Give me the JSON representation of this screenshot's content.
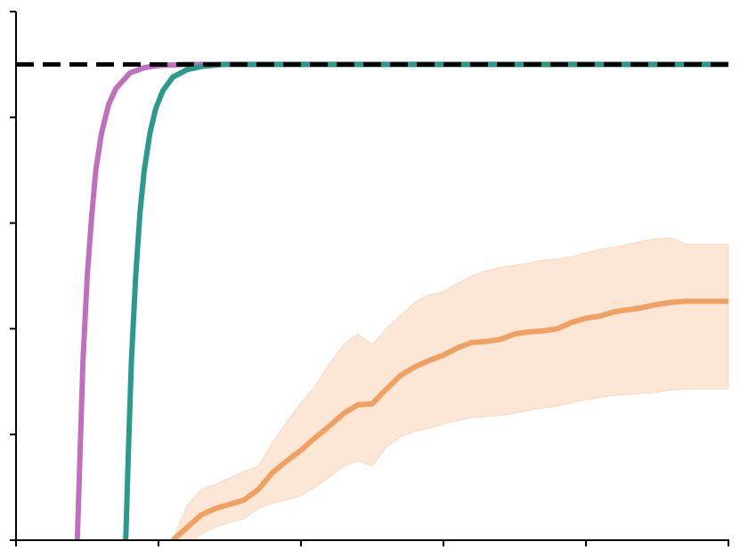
{
  "chart_data": {
    "type": "line",
    "title": "",
    "xlabel": "",
    "ylabel": "",
    "xlim": [
      0,
      5
    ],
    "ylim": [
      0,
      5
    ],
    "x_ticks": [
      0,
      1,
      2,
      3,
      4,
      5
    ],
    "y_ticks": [
      0,
      1,
      2,
      3,
      4,
      5
    ],
    "grid": false,
    "reference_line": {
      "y": 4.5,
      "style": "dashed",
      "color": "#000000"
    },
    "series": [
      {
        "color": "#c06fbe",
        "x": [
          0.43,
          0.45,
          0.47,
          0.5,
          0.53,
          0.56,
          0.6,
          0.65,
          0.7,
          0.8,
          0.9,
          1.0,
          1.2,
          1.5,
          2.0,
          3.0,
          4.0,
          5.0
        ],
        "y": [
          0.0,
          0.85,
          1.7,
          2.5,
          3.05,
          3.5,
          3.85,
          4.12,
          4.27,
          4.42,
          4.47,
          4.49,
          4.5,
          4.5,
          4.5,
          4.5,
          4.5,
          4.5
        ]
      },
      {
        "color": "#2a9a8c",
        "x": [
          0.77,
          0.79,
          0.81,
          0.84,
          0.87,
          0.9,
          0.94,
          0.98,
          1.03,
          1.1,
          1.2,
          1.3,
          1.45,
          1.6,
          2.0,
          3.0,
          4.0,
          5.0
        ],
        "y": [
          0.0,
          0.9,
          1.7,
          2.5,
          3.1,
          3.5,
          3.85,
          4.08,
          4.25,
          4.38,
          4.45,
          4.48,
          4.5,
          4.5,
          4.5,
          4.5,
          4.5,
          4.5
        ]
      },
      {
        "color": "#f2a061",
        "x": [
          1.1,
          1.2,
          1.3,
          1.4,
          1.5,
          1.6,
          1.7,
          1.8,
          1.9,
          2.0,
          2.1,
          2.2,
          2.3,
          2.4,
          2.5,
          2.6,
          2.7,
          2.8,
          2.9,
          3.0,
          3.1,
          3.2,
          3.3,
          3.4,
          3.5,
          3.6,
          3.7,
          3.8,
          3.9,
          4.0,
          4.1,
          4.2,
          4.3,
          4.4,
          4.5,
          4.6,
          4.7,
          4.8,
          4.9,
          5.0
        ],
        "y": [
          0.0,
          0.12,
          0.24,
          0.3,
          0.34,
          0.38,
          0.48,
          0.64,
          0.75,
          0.85,
          0.97,
          1.08,
          1.2,
          1.28,
          1.29,
          1.43,
          1.56,
          1.64,
          1.7,
          1.75,
          1.82,
          1.87,
          1.88,
          1.9,
          1.95,
          1.97,
          1.98,
          2.0,
          2.06,
          2.1,
          2.12,
          2.16,
          2.18,
          2.2,
          2.23,
          2.25,
          2.26,
          2.26,
          2.26,
          2.26
        ],
        "lower": [
          0.0,
          -0.05,
          0.06,
          0.12,
          0.17,
          0.2,
          0.3,
          0.35,
          0.38,
          0.42,
          0.5,
          0.6,
          0.7,
          0.75,
          0.7,
          0.88,
          0.98,
          1.03,
          1.06,
          1.1,
          1.13,
          1.16,
          1.17,
          1.18,
          1.2,
          1.23,
          1.25,
          1.27,
          1.3,
          1.33,
          1.35,
          1.37,
          1.38,
          1.39,
          1.4,
          1.42,
          1.43,
          1.43,
          1.43,
          1.43
        ],
        "upper": [
          0.0,
          0.33,
          0.48,
          0.53,
          0.59,
          0.65,
          0.7,
          0.92,
          1.12,
          1.3,
          1.46,
          1.67,
          1.85,
          1.95,
          1.85,
          2.0,
          2.13,
          2.25,
          2.32,
          2.35,
          2.43,
          2.5,
          2.55,
          2.58,
          2.6,
          2.62,
          2.65,
          2.66,
          2.68,
          2.72,
          2.75,
          2.77,
          2.8,
          2.83,
          2.85,
          2.86,
          2.8,
          2.8,
          2.8,
          2.8
        ]
      }
    ]
  }
}
